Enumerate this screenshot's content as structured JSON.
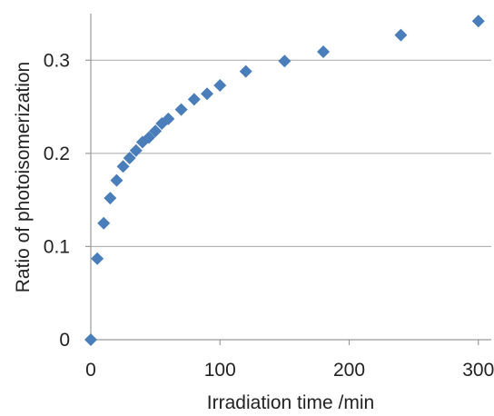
{
  "chart_data": {
    "type": "scatter",
    "title": "",
    "xlabel": "Irradiation time /min",
    "ylabel": "Ratio of photoisomerization",
    "xlim": [
      0,
      310
    ],
    "ylim": [
      0,
      0.35
    ],
    "xticks": [
      0,
      100,
      200,
      300
    ],
    "yticks": [
      0,
      0.1,
      0.2,
      0.3
    ],
    "xtick_labels": [
      "0",
      "100",
      "200",
      "300"
    ],
    "ytick_labels": [
      "0",
      "0.1",
      "0.2",
      "0.3"
    ],
    "grid": "horizontal",
    "legend": "none",
    "marker": "diamond",
    "marker_color": "#4a7ebb",
    "series": [
      {
        "points": [
          [
            0,
            0.0
          ],
          [
            5,
            0.087
          ],
          [
            10,
            0.125
          ],
          [
            15,
            0.152
          ],
          [
            20,
            0.171
          ],
          [
            25,
            0.186
          ],
          [
            30,
            0.195
          ],
          [
            35,
            0.203
          ],
          [
            40,
            0.212
          ],
          [
            45,
            0.217
          ],
          [
            50,
            0.224
          ],
          [
            55,
            0.232
          ],
          [
            60,
            0.237
          ],
          [
            70,
            0.247
          ],
          [
            80,
            0.258
          ],
          [
            90,
            0.264
          ],
          [
            100,
            0.273
          ],
          [
            120,
            0.288
          ],
          [
            150,
            0.299
          ],
          [
            180,
            0.309
          ],
          [
            240,
            0.327
          ],
          [
            300,
            0.342
          ]
        ]
      }
    ]
  }
}
